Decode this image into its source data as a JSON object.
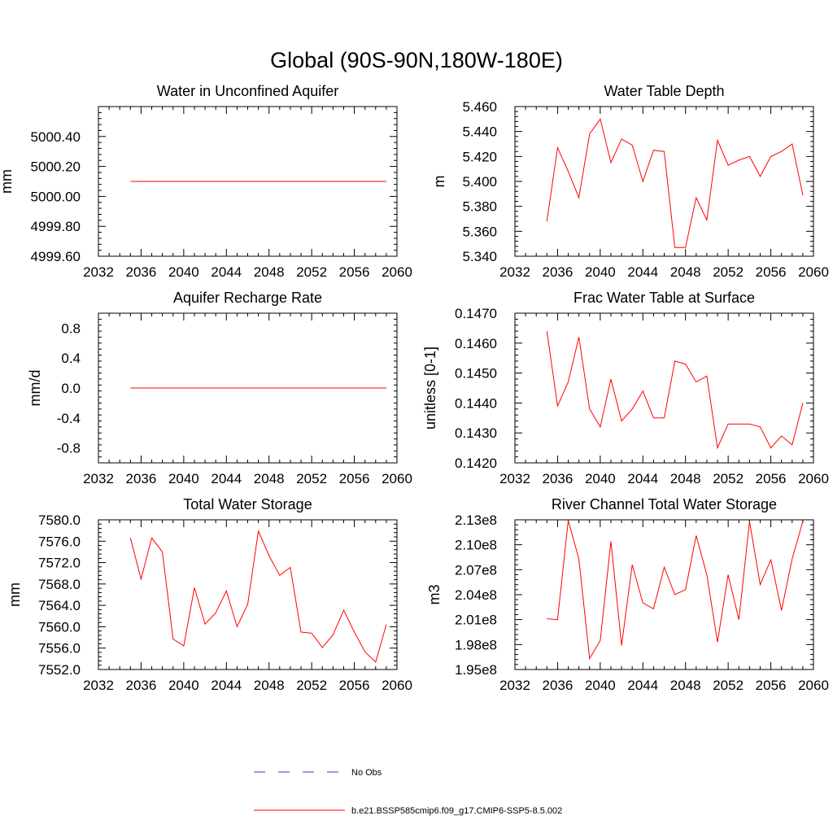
{
  "figure": {
    "title": "Global (90S-90N,180W-180E)"
  },
  "legend": [
    {
      "label": "No Obs",
      "color": "#3a3ad0",
      "style": "dashed"
    },
    {
      "label": "b.e21.BSSP585cmip6.f09_g17.CMIP6-SSP5-8.5.002",
      "color": "#ff0000",
      "style": "solid"
    }
  ],
  "chart_data": [
    {
      "type": "line",
      "title": "Water in Unconfined Aquifer",
      "ylabel": "mm",
      "xlim": [
        2032,
        2060
      ],
      "ylim": [
        4999.6,
        5000.6
      ],
      "xticks": [
        2032,
        2036,
        2040,
        2044,
        2048,
        2052,
        2056,
        2060
      ],
      "xtick_labels": [
        "2032",
        "2036",
        "2040",
        "2044",
        "2048",
        "2052",
        "2056",
        "2060"
      ],
      "yticks": [
        4999.6,
        4999.8,
        5000.0,
        5000.2,
        5000.4
      ],
      "ytick_labels": [
        "4999.60",
        "4999.80",
        "5000.00",
        "5000.20",
        "5000.40"
      ],
      "series": [
        {
          "color": "#ff0000",
          "x": [
            2035,
            2059
          ],
          "values": [
            5000.1,
            5000.1
          ]
        }
      ]
    },
    {
      "type": "line",
      "title": "Water Table Depth",
      "ylabel": "m",
      "xlim": [
        2032,
        2060
      ],
      "ylim": [
        5.34,
        5.46
      ],
      "xticks": [
        2032,
        2036,
        2040,
        2044,
        2048,
        2052,
        2056,
        2060
      ],
      "xtick_labels": [
        "2032",
        "2036",
        "2040",
        "2044",
        "2048",
        "2052",
        "2056",
        "2060"
      ],
      "yticks": [
        5.34,
        5.36,
        5.38,
        5.4,
        5.42,
        5.44,
        5.46
      ],
      "ytick_labels": [
        "5.340",
        "5.360",
        "5.380",
        "5.400",
        "5.420",
        "5.440",
        "5.460"
      ],
      "series": [
        {
          "color": "#ff0000",
          "x": [
            2035,
            2036,
            2037,
            2038,
            2039,
            2040,
            2041,
            2042,
            2043,
            2044,
            2045,
            2046,
            2047,
            2048,
            2049,
            2050,
            2051,
            2052,
            2053,
            2054,
            2055,
            2056,
            2057,
            2058,
            2059
          ],
          "values": [
            5.368,
            5.427,
            5.408,
            5.387,
            5.438,
            5.45,
            5.415,
            5.434,
            5.429,
            5.4,
            5.425,
            5.424,
            5.347,
            5.347,
            5.387,
            5.369,
            5.433,
            5.413,
            5.417,
            5.42,
            5.404,
            5.42,
            5.424,
            5.43,
            5.389
          ]
        }
      ]
    },
    {
      "type": "line",
      "title": "Aquifer Recharge Rate",
      "ylabel": "mm/d",
      "xlim": [
        2032,
        2060
      ],
      "ylim": [
        -1.0,
        1.0
      ],
      "xticks": [
        2032,
        2036,
        2040,
        2044,
        2048,
        2052,
        2056,
        2060
      ],
      "xtick_labels": [
        "2032",
        "2036",
        "2040",
        "2044",
        "2048",
        "2052",
        "2056",
        "2060"
      ],
      "yticks": [
        -0.8,
        -0.4,
        0.0,
        0.4,
        0.8
      ],
      "ytick_labels": [
        "-0.8",
        "-0.4",
        "0.0",
        "0.4",
        "0.8"
      ],
      "series": [
        {
          "color": "#ff0000",
          "x": [
            2035,
            2059
          ],
          "values": [
            0.0,
            0.0
          ]
        }
      ]
    },
    {
      "type": "line",
      "title": "Frac Water Table at Surface",
      "ylabel": "unitless [0-1]",
      "xlim": [
        2032,
        2060
      ],
      "ylim": [
        0.142,
        0.147
      ],
      "xticks": [
        2032,
        2036,
        2040,
        2044,
        2048,
        2052,
        2056,
        2060
      ],
      "xtick_labels": [
        "2032",
        "2036",
        "2040",
        "2044",
        "2048",
        "2052",
        "2056",
        "2060"
      ],
      "yticks": [
        0.142,
        0.143,
        0.144,
        0.145,
        0.146,
        0.147
      ],
      "ytick_labels": [
        "0.1420",
        "0.1430",
        "0.1440",
        "0.1450",
        "0.1460",
        "0.1470"
      ],
      "series": [
        {
          "color": "#ff0000",
          "x": [
            2035,
            2036,
            2037,
            2038,
            2039,
            2040,
            2041,
            2042,
            2043,
            2044,
            2045,
            2046,
            2047,
            2048,
            2049,
            2050,
            2051,
            2052,
            2053,
            2054,
            2055,
            2056,
            2057,
            2058,
            2059
          ],
          "values": [
            0.1464,
            0.1439,
            0.1447,
            0.1462,
            0.1438,
            0.1432,
            0.1448,
            0.1434,
            0.1438,
            0.1444,
            0.1435,
            0.1435,
            0.1454,
            0.1453,
            0.1447,
            0.1449,
            0.1425,
            0.1433,
            0.1433,
            0.1433,
            0.1432,
            0.1425,
            0.1429,
            0.1426,
            0.144
          ]
        }
      ]
    },
    {
      "type": "line",
      "title": "Total Water Storage",
      "ylabel": "mm",
      "xlim": [
        2032,
        2060
      ],
      "ylim": [
        7552.0,
        7580.0
      ],
      "xticks": [
        2032,
        2036,
        2040,
        2044,
        2048,
        2052,
        2056,
        2060
      ],
      "xtick_labels": [
        "2032",
        "2036",
        "2040",
        "2044",
        "2048",
        "2052",
        "2056",
        "2060"
      ],
      "yticks": [
        7552,
        7556,
        7560,
        7564,
        7568,
        7572,
        7576,
        7580
      ],
      "ytick_labels": [
        "7552.0",
        "7556.0",
        "7560.0",
        "7564.0",
        "7568.0",
        "7572.0",
        "7576.0",
        "7580.0"
      ],
      "series": [
        {
          "color": "#ff0000",
          "x": [
            2035,
            2036,
            2037,
            2038,
            2039,
            2040,
            2041,
            2042,
            2043,
            2044,
            2045,
            2046,
            2047,
            2048,
            2049,
            2050,
            2051,
            2052,
            2053,
            2054,
            2055,
            2056,
            2057,
            2058,
            2059
          ],
          "values": [
            7576.6,
            7568.9,
            7576.6,
            7574.0,
            7557.7,
            7556.4,
            7567.3,
            7560.5,
            7562.6,
            7566.7,
            7560.0,
            7564.2,
            7577.9,
            7573.3,
            7569.6,
            7571.1,
            7559.0,
            7558.8,
            7556.1,
            7558.5,
            7563.1,
            7559.0,
            7555.3,
            7553.4,
            7560.4
          ]
        }
      ]
    },
    {
      "type": "line",
      "title": "River Channel Total Water Storage",
      "ylabel": "m3",
      "xlim": [
        2032,
        2060
      ],
      "ylim": [
        195000000.0,
        213000000.0
      ],
      "xticks": [
        2032,
        2036,
        2040,
        2044,
        2048,
        2052,
        2056,
        2060
      ],
      "xtick_labels": [
        "2032",
        "2036",
        "2040",
        "2044",
        "2048",
        "2052",
        "2056",
        "2060"
      ],
      "yticks": [
        195000000.0,
        198000000.0,
        201000000.0,
        204000000.0,
        207000000.0,
        210000000.0,
        213000000.0
      ],
      "ytick_labels": [
        "1.95e8",
        "1.98e8",
        "2.01e8",
        "2.04e8",
        "2.07e8",
        "2.10e8",
        "2.13e8"
      ],
      "series": [
        {
          "color": "#ff0000",
          "x": [
            2035,
            2036,
            2037,
            2038,
            2039,
            2040,
            2041,
            2042,
            2043,
            2044,
            2045,
            2046,
            2047,
            2048,
            2049,
            2050,
            2051,
            2052,
            2053,
            2054,
            2055,
            2056,
            2057,
            2058,
            2059
          ],
          "values": [
            201100000.0,
            201000000.0,
            212900000.0,
            208300000.0,
            196300000.0,
            198500000.0,
            210400000.0,
            197900000.0,
            207600000.0,
            203000000.0,
            202300000.0,
            207300000.0,
            204000000.0,
            204600000.0,
            211100000.0,
            206400000.0,
            198300000.0,
            206400000.0,
            201000000.0,
            212800000.0,
            205200000.0,
            208200000.0,
            202100000.0,
            208300000.0,
            212800000.0
          ]
        }
      ]
    }
  ]
}
